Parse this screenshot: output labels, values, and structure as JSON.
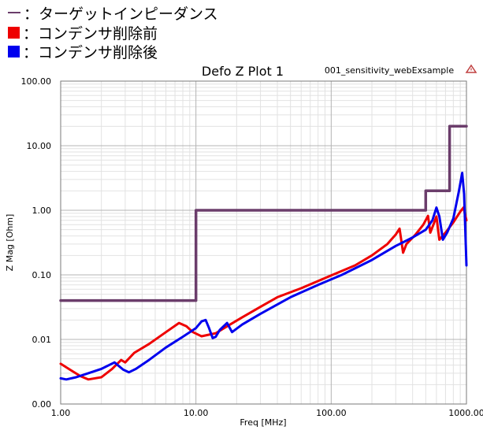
{
  "legend": {
    "items": [
      {
        "label": "：ターゲットインピーダンス",
        "color": "#6b3d6b",
        "marker": "line"
      },
      {
        "label": "：コンデンサ削除前",
        "color": "#ee0000",
        "marker": "square"
      },
      {
        "label": "：コンデンサ削除後",
        "color": "#0000ee",
        "marker": "square"
      }
    ]
  },
  "header": {
    "title": "Defo Z Plot 1",
    "subtitle": "001_sensitivity_webExsample",
    "warning_icon": "warning-triangle-icon",
    "warning_color": "#c04040"
  },
  "chart_data": {
    "type": "line",
    "title": "Defo Z Plot 1",
    "xlabel": "Freq [MHz]",
    "ylabel": "Z Mag [Ohm]",
    "xscale": "log",
    "yscale": "log",
    "xlim": [
      1,
      1000
    ],
    "ylim": [
      0.001,
      100
    ],
    "grid": true,
    "x_ticks": [
      1,
      10,
      100,
      1000
    ],
    "x_tick_labels": [
      "1.00",
      "10.00",
      "100.00",
      "1000.00"
    ],
    "y_ticks": [
      0.001,
      0.01,
      0.1,
      1,
      10,
      100
    ],
    "y_tick_labels": [
      "0.00",
      "0.01",
      "0.10",
      "1.00",
      "10.00",
      "100.00"
    ],
    "series": [
      {
        "color": "#ee0000",
        "points": [
          [
            1,
            0.0042
          ],
          [
            1.2,
            0.0033
          ],
          [
            1.4,
            0.0027
          ],
          [
            1.6,
            0.0024
          ],
          [
            2,
            0.0026
          ],
          [
            2.4,
            0.0035
          ],
          [
            2.8,
            0.0048
          ],
          [
            3,
            0.0044
          ],
          [
            3.5,
            0.0062
          ],
          [
            4.5,
            0.0085
          ],
          [
            6,
            0.013
          ],
          [
            7.5,
            0.018
          ],
          [
            8.5,
            0.016
          ],
          [
            9.5,
            0.013
          ],
          [
            11,
            0.0112
          ],
          [
            14,
            0.0125
          ],
          [
            17,
            0.016
          ],
          [
            22,
            0.022
          ],
          [
            30,
            0.032
          ],
          [
            40,
            0.045
          ],
          [
            60,
            0.062
          ],
          [
            100,
            0.098
          ],
          [
            150,
            0.14
          ],
          [
            200,
            0.2
          ],
          [
            260,
            0.3
          ],
          [
            300,
            0.42
          ],
          [
            320,
            0.52
          ],
          [
            340,
            0.22
          ],
          [
            360,
            0.3
          ],
          [
            420,
            0.42
          ],
          [
            480,
            0.6
          ],
          [
            520,
            0.82
          ],
          [
            540,
            0.45
          ],
          [
            570,
            0.6
          ],
          [
            600,
            0.8
          ],
          [
            630,
            0.35
          ],
          [
            700,
            0.45
          ],
          [
            800,
            0.65
          ],
          [
            900,
            0.95
          ],
          [
            950,
            1.1
          ],
          [
            1000,
            0.7
          ]
        ]
      },
      {
        "color": "#0000ee",
        "points": [
          [
            1,
            0.0025
          ],
          [
            1.1,
            0.0024
          ],
          [
            1.3,
            0.0026
          ],
          [
            1.6,
            0.003
          ],
          [
            2,
            0.0035
          ],
          [
            2.5,
            0.0044
          ],
          [
            2.9,
            0.0034
          ],
          [
            3.2,
            0.0031
          ],
          [
            3.6,
            0.0035
          ],
          [
            4.5,
            0.0048
          ],
          [
            6,
            0.0075
          ],
          [
            8,
            0.011
          ],
          [
            10,
            0.015
          ],
          [
            11,
            0.019
          ],
          [
            11.8,
            0.02
          ],
          [
            12.5,
            0.015
          ],
          [
            13.3,
            0.0105
          ],
          [
            14,
            0.011
          ],
          [
            15,
            0.014
          ],
          [
            17,
            0.018
          ],
          [
            18.5,
            0.013
          ],
          [
            22,
            0.017
          ],
          [
            30,
            0.025
          ],
          [
            50,
            0.045
          ],
          [
            80,
            0.07
          ],
          [
            120,
            0.1
          ],
          [
            200,
            0.17
          ],
          [
            300,
            0.28
          ],
          [
            400,
            0.38
          ],
          [
            500,
            0.5
          ],
          [
            560,
            0.7
          ],
          [
            600,
            1.1
          ],
          [
            630,
            0.8
          ],
          [
            670,
            0.35
          ],
          [
            720,
            0.45
          ],
          [
            800,
            0.75
          ],
          [
            880,
            2
          ],
          [
            930,
            3.8
          ],
          [
            960,
            1.8
          ],
          [
            1000,
            0.14
          ]
        ]
      },
      {
        "color": "#6b3d6b",
        "points": [
          [
            1,
            0.04
          ],
          [
            10,
            0.04
          ],
          [
            10,
            1
          ],
          [
            500,
            1
          ],
          [
            500,
            2
          ],
          [
            750,
            2
          ],
          [
            750,
            20
          ],
          [
            1000,
            20
          ]
        ]
      }
    ]
  }
}
